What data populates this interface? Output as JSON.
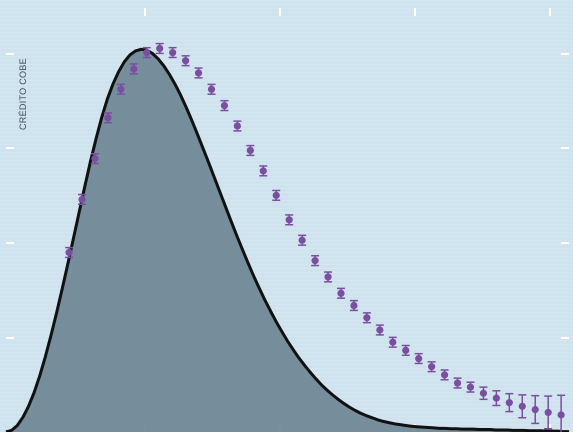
{
  "credit": "CRÉDITO COBE",
  "colors": {
    "background": "#cfe3ee",
    "fill": "#6f8795",
    "curve": "#111111",
    "markers": "#7a4fa0",
    "ticks": "#ffffff"
  },
  "chart_data": {
    "type": "area",
    "title": "",
    "xlabel": "",
    "ylabel": "",
    "grid": false,
    "legend": "none",
    "xlim": [
      0,
      100
    ],
    "ylim": [
      0,
      100
    ],
    "series": [
      {
        "type": "curve",
        "x": [
          0,
          1,
          2,
          3,
          4,
          5,
          6,
          7,
          8,
          9,
          10,
          11,
          12,
          13,
          14,
          15,
          16,
          17,
          18,
          19,
          20,
          21,
          22,
          23,
          24,
          25,
          26,
          27,
          28,
          29,
          30,
          31,
          32,
          33,
          34,
          35,
          36,
          37,
          38,
          39,
          40,
          41,
          42,
          43,
          44,
          45,
          46,
          47,
          48,
          49,
          50,
          51,
          52,
          53,
          54,
          55,
          56,
          57,
          58,
          59,
          60,
          61,
          62,
          63,
          64,
          65,
          66,
          67,
          68,
          69,
          70,
          71,
          72,
          73,
          74,
          75,
          76,
          77,
          78,
          79,
          80,
          81,
          82,
          83,
          84,
          85,
          86,
          87,
          88,
          89,
          90,
          91,
          92,
          93,
          94,
          95,
          96,
          97,
          98,
          99,
          100
        ],
        "y": [
          0,
          0.4,
          1.6,
          3.6,
          6.3,
          9.7,
          13.8,
          18.5,
          23.7,
          29.3,
          35.2,
          41.3,
          47.6,
          53.9,
          60.2,
          66.3,
          71.9,
          77.1,
          81.6,
          85.3,
          88.3,
          90.7,
          92.4,
          93.4,
          93.8,
          93.6,
          92.8,
          91.5,
          89.8,
          87.7,
          85.3,
          82.6,
          79.6,
          76.4,
          73.0,
          69.5,
          66.0,
          62.4,
          58.8,
          55.2,
          51.6,
          48.1,
          44.7,
          41.4,
          38.2,
          35.2,
          32.3,
          29.6,
          27.0,
          24.6,
          22.3,
          20.2,
          18.2,
          16.4,
          14.7,
          13.1,
          11.6,
          10.3,
          9.1,
          8.0,
          7.0,
          6.1,
          5.3,
          4.6,
          4.0,
          3.5,
          3.0,
          2.6,
          2.3,
          2.0,
          1.8,
          1.6,
          1.4,
          1.3,
          1.2,
          1.1,
          1.0,
          0.9,
          0.9,
          0.8,
          0.8,
          0.7,
          0.7,
          0.7,
          0.6,
          0.6,
          0.6,
          0.5,
          0.5,
          0.5,
          0.4,
          0.4,
          0.4,
          0.3,
          0.3,
          0.3,
          0.2,
          0.2,
          0.2,
          0.1,
          0.1
        ]
      },
      {
        "type": "points_with_errorbars",
        "x": [
          11.2,
          13.5,
          15.8,
          18.1,
          20.4,
          22.7,
          25.0,
          27.3,
          29.6,
          31.9,
          34.2,
          36.5,
          38.8,
          41.1,
          43.4,
          45.7,
          48.0,
          50.3,
          52.6,
          54.9,
          57.2,
          59.5,
          61.8,
          64.1,
          66.4,
          68.7,
          71.0,
          73.3,
          75.6,
          77.9,
          80.2,
          82.5,
          84.8,
          87.1,
          89.4,
          91.7,
          94.0,
          96.3,
          98.6
        ],
        "y": [
          44,
          57,
          67,
          77,
          84,
          89,
          93,
          94,
          93,
          91,
          88,
          84,
          80,
          75,
          69,
          64,
          58,
          52,
          47,
          42,
          38,
          34,
          31,
          28,
          25,
          22,
          20,
          18,
          16,
          14,
          12,
          11,
          9.5,
          8.3,
          7.2,
          6.3,
          5.5,
          4.8,
          4.2
        ],
        "errors": [
          1.2,
          1.2,
          1.2,
          1.2,
          1.2,
          1.2,
          1.2,
          1.2,
          1.2,
          1.2,
          1.2,
          1.2,
          1.2,
          1.2,
          1.2,
          1.2,
          1.2,
          1.2,
          1.2,
          1.2,
          1.2,
          1.2,
          1.2,
          1.2,
          1.2,
          1.2,
          1.2,
          1.2,
          1.2,
          1.2,
          1.2,
          1.2,
          1.5,
          1.8,
          2.2,
          2.8,
          3.4,
          4.0,
          4.8
        ]
      }
    ]
  }
}
